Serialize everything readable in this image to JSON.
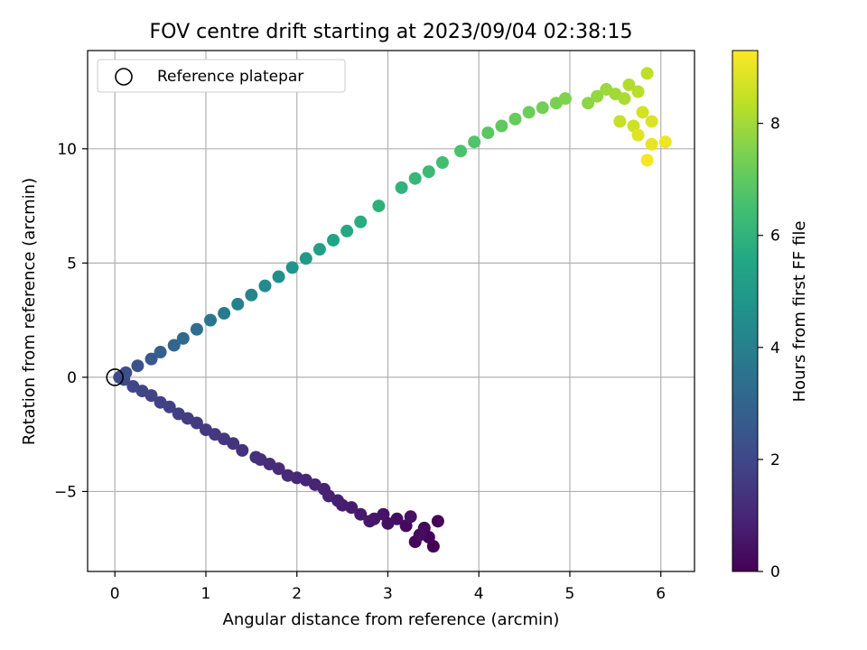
{
  "chart_data": {
    "type": "scatter",
    "title": "FOV centre drift starting at 2023/09/04 02:38:15",
    "xlabel": "Angular distance from reference (arcmin)",
    "ylabel": "Rotation from reference (arcmin)",
    "xlim": [
      -0.3,
      6.37
    ],
    "ylim": [
      -8.5,
      14.3
    ],
    "xticks": [
      0,
      1,
      2,
      3,
      4,
      5,
      6
    ],
    "yticks": [
      -5,
      0,
      5,
      10
    ],
    "xtick_labels": [
      "0",
      "1",
      "2",
      "3",
      "4",
      "5",
      "6"
    ],
    "ytick_labels": [
      "−5",
      "0",
      "5",
      "10"
    ],
    "grid": true,
    "legend": {
      "placement": "top-left",
      "entries": [
        "Reference platepar"
      ]
    },
    "reference_point": {
      "x": 0,
      "y": 0,
      "label": "Reference platepar",
      "marker": "open-circle"
    },
    "colorbar": {
      "label": "Hours from first FF file",
      "min": 0,
      "max": 9.3,
      "ticks": [
        0,
        2,
        4,
        6,
        8
      ],
      "tick_labels": [
        "0",
        "2",
        "4",
        "6",
        "8"
      ],
      "colormap": "viridis"
    },
    "series": [
      {
        "description": "points coloured by hours from first FF file (x, y, hours)",
        "points": [
          [
            3.5,
            -7.4,
            0.0
          ],
          [
            3.55,
            -6.3,
            0.05
          ],
          [
            3.45,
            -7.0,
            0.1
          ],
          [
            3.3,
            -7.2,
            0.15
          ],
          [
            3.4,
            -6.6,
            0.2
          ],
          [
            3.2,
            -6.5,
            0.25
          ],
          [
            3.35,
            -6.9,
            0.3
          ],
          [
            3.1,
            -6.2,
            0.35
          ],
          [
            3.0,
            -6.4,
            0.4
          ],
          [
            3.25,
            -6.1,
            0.45
          ],
          [
            2.95,
            -6.0,
            0.5
          ],
          [
            2.85,
            -6.2,
            0.55
          ],
          [
            2.8,
            -6.3,
            0.6
          ],
          [
            2.7,
            -6.0,
            0.65
          ],
          [
            2.6,
            -5.7,
            0.7
          ],
          [
            2.5,
            -5.6,
            0.75
          ],
          [
            2.45,
            -5.4,
            0.8
          ],
          [
            2.35,
            -5.2,
            0.85
          ],
          [
            2.3,
            -4.9,
            0.9
          ],
          [
            2.2,
            -4.7,
            0.95
          ],
          [
            2.1,
            -4.5,
            1.0
          ],
          [
            2.0,
            -4.4,
            1.05
          ],
          [
            1.9,
            -4.3,
            1.1
          ],
          [
            1.8,
            -4.0,
            1.15
          ],
          [
            1.7,
            -3.8,
            1.2
          ],
          [
            1.6,
            -3.6,
            1.25
          ],
          [
            1.55,
            -3.5,
            1.3
          ],
          [
            1.4,
            -3.2,
            1.35
          ],
          [
            1.3,
            -2.9,
            1.4
          ],
          [
            1.2,
            -2.7,
            1.45
          ],
          [
            1.1,
            -2.5,
            1.5
          ],
          [
            1.0,
            -2.3,
            1.55
          ],
          [
            0.9,
            -2.0,
            1.6
          ],
          [
            0.8,
            -1.8,
            1.65
          ],
          [
            0.7,
            -1.6,
            1.7
          ],
          [
            0.6,
            -1.3,
            1.75
          ],
          [
            0.5,
            -1.1,
            1.8
          ],
          [
            0.4,
            -0.8,
            1.85
          ],
          [
            0.3,
            -0.6,
            1.9
          ],
          [
            0.2,
            -0.4,
            1.95
          ],
          [
            0.1,
            -0.1,
            2.0
          ],
          [
            0.05,
            0.0,
            2.05
          ],
          [
            0.12,
            0.2,
            2.2
          ],
          [
            0.25,
            0.5,
            2.4
          ],
          [
            0.4,
            0.8,
            2.6
          ],
          [
            0.5,
            1.1,
            2.8
          ],
          [
            0.65,
            1.4,
            3.0
          ],
          [
            0.75,
            1.7,
            3.2
          ],
          [
            0.9,
            2.1,
            3.4
          ],
          [
            1.05,
            2.5,
            3.6
          ],
          [
            1.2,
            2.8,
            3.8
          ],
          [
            1.35,
            3.2,
            4.0
          ],
          [
            1.5,
            3.6,
            4.2
          ],
          [
            1.65,
            4.0,
            4.4
          ],
          [
            1.8,
            4.4,
            4.6
          ],
          [
            1.95,
            4.8,
            4.8
          ],
          [
            2.1,
            5.2,
            5.0
          ],
          [
            2.25,
            5.6,
            5.2
          ],
          [
            2.4,
            6.0,
            5.4
          ],
          [
            2.55,
            6.4,
            5.6
          ],
          [
            2.7,
            6.8,
            5.75
          ],
          [
            2.9,
            7.5,
            5.9
          ],
          [
            3.15,
            8.3,
            6.0
          ],
          [
            3.3,
            8.7,
            6.15
          ],
          [
            3.45,
            9.0,
            6.3
          ],
          [
            3.6,
            9.4,
            6.45
          ],
          [
            3.8,
            9.9,
            6.6
          ],
          [
            3.95,
            10.3,
            6.75
          ],
          [
            4.1,
            10.7,
            6.9
          ],
          [
            4.25,
            11.0,
            7.0
          ],
          [
            4.4,
            11.3,
            7.1
          ],
          [
            4.55,
            11.6,
            7.2
          ],
          [
            4.7,
            11.8,
            7.3
          ],
          [
            4.85,
            12.0,
            7.4
          ],
          [
            4.95,
            12.2,
            7.5
          ],
          [
            5.2,
            12.0,
            7.7
          ],
          [
            5.3,
            12.3,
            7.8
          ],
          [
            5.4,
            12.6,
            7.9
          ],
          [
            5.5,
            12.4,
            8.0
          ],
          [
            5.6,
            12.2,
            8.1
          ],
          [
            5.65,
            12.8,
            8.2
          ],
          [
            5.75,
            12.5,
            8.3
          ],
          [
            5.85,
            13.3,
            8.4
          ],
          [
            5.55,
            11.2,
            8.5
          ],
          [
            5.7,
            11.0,
            8.6
          ],
          [
            5.8,
            11.6,
            8.7
          ],
          [
            5.9,
            11.2,
            8.8
          ],
          [
            5.75,
            10.6,
            8.9
          ],
          [
            5.9,
            10.2,
            9.0
          ],
          [
            6.05,
            10.3,
            9.1
          ],
          [
            5.85,
            9.5,
            9.2
          ]
        ]
      }
    ]
  }
}
